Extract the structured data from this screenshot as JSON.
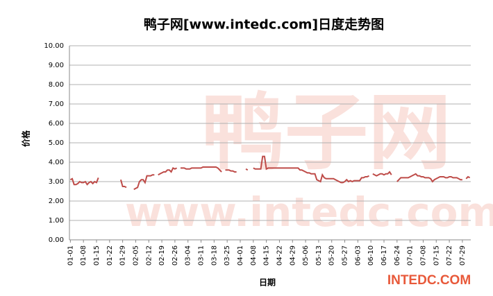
{
  "chart_data": {
    "type": "line",
    "title": "鸭子网[www.intedc.com]日度走势图",
    "x_label": "日期",
    "y_label": "价格",
    "watermarks": [
      "鸭子网",
      "www.intedc.com",
      "INTEDC.COM"
    ],
    "categories": [
      "01-01",
      null,
      null,
      null,
      null,
      null,
      null,
      "01-08",
      null,
      null,
      null,
      null,
      null,
      null,
      "01-15",
      null,
      null,
      null,
      null,
      null,
      null,
      "01-22",
      null,
      null,
      null,
      null,
      null,
      null,
      "01-29",
      null,
      null,
      null,
      null,
      null,
      null,
      "02-05",
      null,
      null,
      null,
      null,
      null,
      null,
      "02-12",
      null,
      null,
      null,
      null,
      null,
      null,
      "02-19",
      null,
      null,
      null,
      null,
      null,
      null,
      "02-26",
      null,
      null,
      null,
      null,
      null,
      null,
      "03-04",
      null,
      null,
      null,
      null,
      null,
      null,
      "03-11",
      null,
      null,
      null,
      null,
      null,
      null,
      "03-18",
      null,
      null,
      null,
      null,
      null,
      null,
      "03-25",
      null,
      null,
      null,
      null,
      null,
      null,
      "04-01",
      null,
      null,
      null,
      null,
      null,
      null,
      "04-08",
      null,
      null,
      null,
      null,
      null,
      null,
      "04-15",
      null,
      null,
      null,
      null,
      null,
      null,
      "04-22",
      null,
      null,
      null,
      null,
      null,
      null,
      "04-29",
      null,
      null,
      null,
      null,
      null,
      null,
      "05-06",
      null,
      null,
      null,
      null,
      null,
      null,
      "05-13",
      null,
      null,
      null,
      null,
      null,
      null,
      "05-20",
      null,
      null,
      null,
      null,
      null,
      null,
      "05-27",
      null,
      null,
      null,
      null,
      null,
      null,
      "06-03",
      null,
      null,
      null,
      null,
      null,
      null,
      "06-10",
      null,
      null,
      null,
      null,
      null,
      null,
      "06-17",
      null,
      null,
      null,
      null,
      null,
      null,
      "06-24",
      null,
      null,
      null,
      null,
      null,
      null,
      "07-01",
      null,
      null,
      null,
      null,
      null,
      null,
      "07-08",
      null,
      null,
      null,
      null,
      null,
      null,
      "07-15",
      null,
      null,
      null,
      null,
      null,
      null,
      "07-22",
      null,
      null,
      null,
      null,
      null,
      null,
      "07-29",
      null,
      null,
      null,
      null
    ],
    "values": [
      3.1,
      3.15,
      2.85,
      2.85,
      2.9,
      3.0,
      2.95,
      2.95,
      3.0,
      2.85,
      2.95,
      3.0,
      2.9,
      3.0,
      2.95,
      3.2,
      null,
      null,
      null,
      null,
      null,
      null,
      null,
      null,
      null,
      null,
      null,
      3.1,
      2.75,
      2.75,
      2.7,
      null,
      null,
      null,
      2.6,
      2.65,
      2.7,
      3.0,
      3.1,
      3.1,
      2.95,
      3.3,
      3.3,
      3.3,
      3.35,
      3.35,
      null,
      3.35,
      3.4,
      3.45,
      3.5,
      3.5,
      3.6,
      3.6,
      3.5,
      3.7,
      3.65,
      3.7,
      null,
      3.7,
      3.7,
      3.7,
      3.65,
      3.65,
      3.65,
      3.7,
      3.7,
      3.7,
      3.7,
      3.7,
      3.7,
      3.75,
      3.75,
      3.75,
      3.75,
      3.75,
      3.75,
      3.75,
      3.75,
      3.7,
      3.6,
      3.5,
      null,
      3.6,
      3.6,
      3.6,
      3.55,
      3.55,
      3.5,
      3.5,
      null,
      null,
      null,
      null,
      3.65,
      3.6,
      null,
      null,
      3.7,
      3.65,
      3.65,
      3.65,
      3.65,
      4.3,
      4.3,
      3.65,
      3.7,
      3.7,
      3.7,
      3.7,
      3.7,
      3.7,
      3.7,
      3.7,
      3.7,
      3.7,
      3.7,
      3.7,
      3.7,
      3.7,
      3.7,
      3.7,
      3.7,
      3.6,
      3.6,
      3.55,
      3.5,
      3.45,
      3.45,
      3.4,
      3.4,
      3.4,
      3.1,
      3.05,
      3.0,
      3.35,
      3.2,
      3.15,
      3.15,
      3.15,
      3.15,
      3.15,
      3.1,
      3.05,
      3.0,
      2.95,
      2.95,
      3.0,
      3.1,
      3.0,
      3.05,
      3.0,
      3.05,
      3.05,
      3.05,
      3.05,
      3.2,
      3.2,
      3.25,
      3.25,
      3.3,
      null,
      3.4,
      3.35,
      3.3,
      3.35,
      3.4,
      3.4,
      3.35,
      3.4,
      3.4,
      3.5,
      3.35,
      null,
      null,
      3.0,
      3.1,
      3.2,
      3.2,
      3.2,
      3.2,
      3.2,
      3.25,
      3.3,
      3.35,
      3.4,
      3.3,
      3.3,
      3.25,
      3.25,
      3.2,
      3.2,
      3.2,
      3.15,
      3.0,
      3.1,
      3.15,
      3.2,
      3.25,
      3.25,
      3.25,
      3.2,
      3.2,
      3.25,
      3.25,
      3.2,
      3.2,
      3.2,
      3.15,
      3.1,
      3.1,
      null,
      3.15,
      3.25,
      3.2
    ],
    "color": "#be4b48",
    "ylim": [
      0,
      10
    ],
    "yticks": [
      {
        "value": 0,
        "label": "0.00"
      },
      {
        "value": 1,
        "label": "1.00"
      },
      {
        "value": 2,
        "label": "2.00"
      },
      {
        "value": 3,
        "label": "3.00"
      },
      {
        "value": 4,
        "label": "4.00"
      },
      {
        "value": 5,
        "label": "5.00"
      },
      {
        "value": 6,
        "label": "6.00"
      },
      {
        "value": 7,
        "label": "7.00"
      },
      {
        "value": 8,
        "label": "8.00"
      },
      {
        "value": 9,
        "label": "9.00"
      },
      {
        "value": 10,
        "label": "10.00"
      }
    ],
    "grid": true
  }
}
